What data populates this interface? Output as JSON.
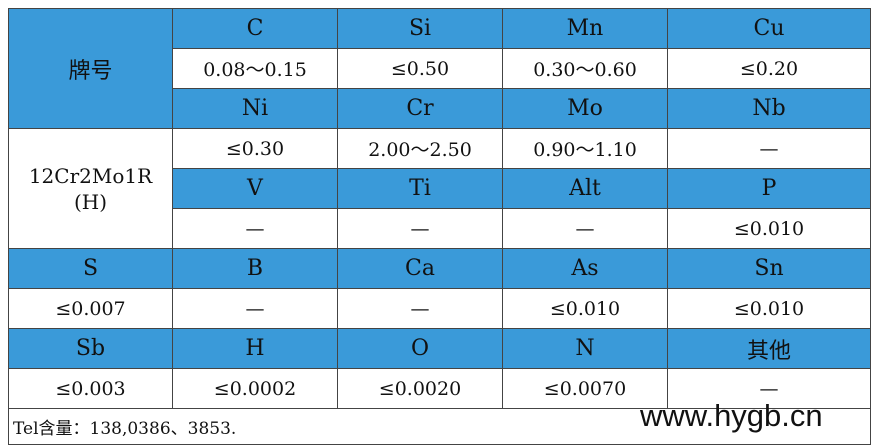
{
  "table": {
    "header_label": "牌号",
    "grade": "12Cr2Mo1R(H)",
    "rows": [
      [
        "C",
        "Si",
        "Mn",
        "Cu"
      ],
      [
        "0.08～0.15",
        "≤0.50",
        "0.30～0.60",
        "≤0.20"
      ],
      [
        "Ni",
        "Cr",
        "Mo",
        "Nb"
      ],
      [
        "≤0.30",
        "2.00～2.50",
        "0.90～1.10",
        "—"
      ],
      [
        "V",
        "Ti",
        "Alt",
        "P"
      ],
      [
        "—",
        "—",
        "—",
        "≤0.010"
      ],
      [
        "S",
        "B",
        "Ca",
        "As",
        "Sn"
      ],
      [
        "≤0.007",
        "—",
        "—",
        "≤0.010",
        "≤0.010"
      ],
      [
        "Sb",
        "H",
        "O",
        "N",
        "其他"
      ],
      [
        "≤0.003",
        "≤0.0002",
        "≤0.0020",
        "≤0.0070",
        "—"
      ]
    ],
    "footer": "Tel含量：138,0386、3853."
  },
  "watermark": "www.hygb.cn"
}
